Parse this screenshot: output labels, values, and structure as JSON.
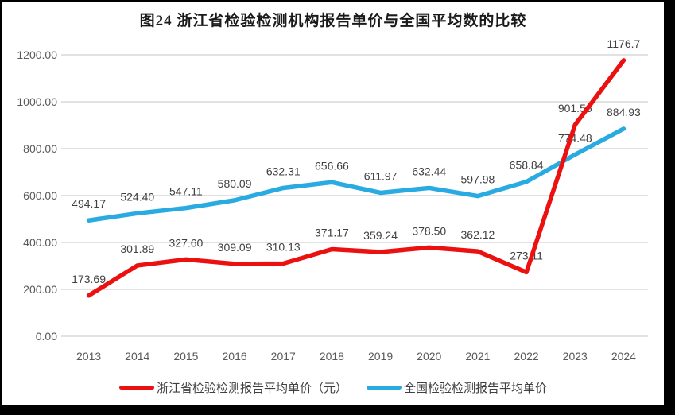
{
  "chart_data": {
    "type": "line",
    "title": "图24  浙江省检验检测机构报告单价与全国平均数的比较",
    "categories": [
      "2013",
      "2014",
      "2015",
      "2016",
      "2017",
      "2018",
      "2019",
      "2020",
      "2021",
      "2022",
      "2023",
      "2024"
    ],
    "series": [
      {
        "id": "zhejiang",
        "name": "浙江省检验检测报告平均单价（元）",
        "color": "#EC1111",
        "values": [
          173.69,
          301.89,
          327.6,
          309.09,
          310.13,
          371.17,
          359.24,
          378.5,
          362.12,
          273.11,
          901.56,
          1176.7
        ],
        "labels": [
          "173.69",
          "301.89",
          "327.60",
          "309.09",
          "310.13",
          "371.17",
          "359.24",
          "378.50",
          "362.12",
          "273.11",
          "901.56",
          "1176.7"
        ]
      },
      {
        "id": "national",
        "name": "全国检验检测报告平均单价",
        "color": "#29ABE2",
        "values": [
          494.17,
          524.4,
          547.11,
          580.09,
          632.31,
          656.66,
          611.97,
          632.44,
          597.98,
          658.84,
          774.48,
          884.93
        ],
        "labels": [
          "494.17",
          "524.40",
          "547.11",
          "580.09",
          "632.31",
          "656.66",
          "611.97",
          "632.44",
          "597.98",
          "658.84",
          "774.48",
          "884.93"
        ]
      }
    ],
    "ylim": [
      0,
      1200
    ],
    "ytick_step": 200,
    "ytick_labels": [
      "0.00",
      "200.00",
      "400.00",
      "600.00",
      "800.00",
      "1000.00",
      "1200.00"
    ],
    "grid": true,
    "legend_position": "bottom",
    "colors": {
      "gridline": "#D9D9D9",
      "axis_text": "#595959",
      "data_label": "#404040",
      "title": "#1A1A1A",
      "frame_border": "#000000"
    }
  }
}
